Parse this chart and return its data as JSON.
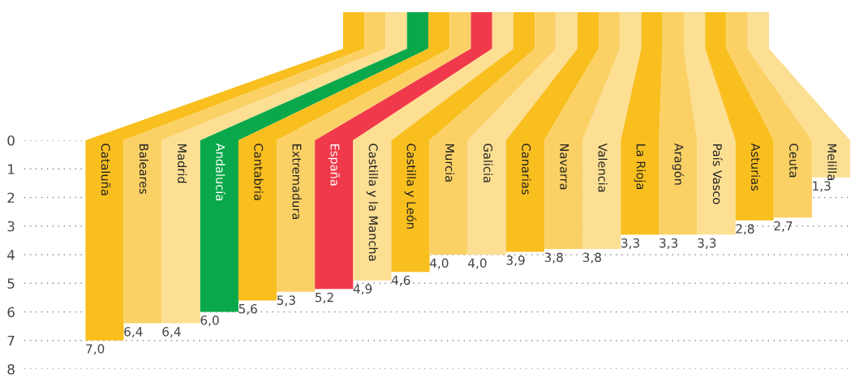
{
  "chart_data": {
    "type": "bar",
    "categories": [
      "Cataluña",
      "Baleares",
      "Madrid",
      "Andalucía",
      "Cantabria",
      "Extremadura",
      "España",
      "Castilla y la Mancha",
      "Castilla y León",
      "Murcia",
      "Galicia",
      "Canarias",
      "Navarra",
      "Valencia",
      "La Rioja",
      "Aragón",
      "País Vasco",
      "Asturias",
      "Ceuta",
      "Melilla"
    ],
    "values": [
      7.0,
      6.4,
      6.4,
      6.0,
      5.6,
      5.3,
      5.2,
      4.9,
      4.6,
      4.0,
      4.0,
      3.9,
      3.8,
      3.8,
      3.3,
      3.3,
      3.3,
      2.8,
      2.7,
      1.3
    ],
    "value_labels": [
      "7,0",
      "6,4",
      "6,4",
      "6,0",
      "5,6",
      "5,3",
      "5,2",
      "4,9",
      "4,6",
      "4,0",
      "4,0",
      "3,9",
      "3,8",
      "3,8",
      "3,3",
      "3,3",
      "3,3",
      "2,8",
      "2,7",
      "1,3"
    ],
    "colors": [
      "#f9bf1f",
      "#fbd166",
      "#fcdf93",
      "#0aa84a",
      "#f9bf1f",
      "#fbd166",
      "#f0394a",
      "#fcdf93",
      "#f9bf1f",
      "#fbd166",
      "#fcdf93",
      "#f9bf1f",
      "#fbd166",
      "#fcdf93",
      "#f9bf1f",
      "#fbd166",
      "#fcdf93",
      "#f9bf1f",
      "#fbd166",
      "#fcdf93"
    ],
    "ylim": [
      8,
      0
    ],
    "yticks": [
      0,
      1,
      2,
      3,
      4,
      5,
      6,
      7,
      8
    ],
    "grid": "y"
  }
}
